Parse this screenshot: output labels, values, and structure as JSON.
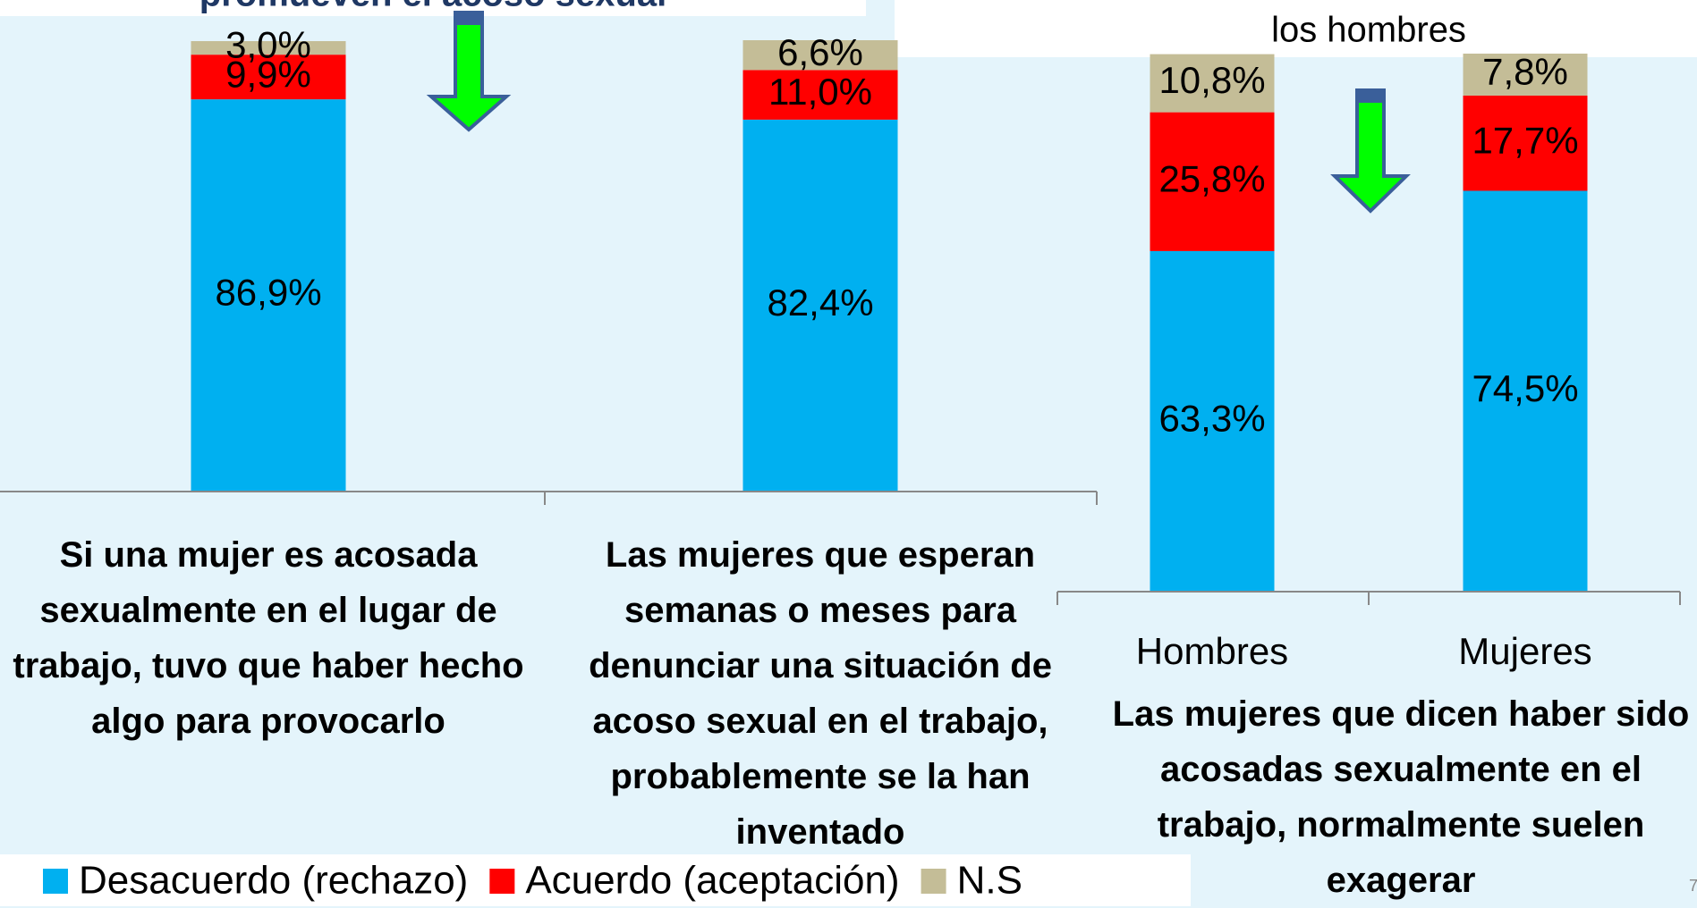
{
  "title": "promueven el acoso sexual",
  "subtitle": "los hombres",
  "page_number": "7",
  "chart_data": [
    {
      "type": "bar",
      "stacked": true,
      "categories": [
        "Si una mujer es acosada sexualmente en el lugar de trabajo, tuvo que haber hecho algo para provocarlo",
        "Las mujeres que esperan semanas o meses para denunciar una situación de acoso sexual en el trabajo, probablemente se la han inventado"
      ],
      "ylim": [
        0,
        100
      ],
      "series": [
        {
          "name": "Desacuerdo (rechazo)",
          "color": "#00b0f0",
          "values": [
            86.9,
            82.4
          ],
          "value_labels": [
            "86,9%",
            "82,4%"
          ]
        },
        {
          "name": "Acuerdo (aceptación)",
          "color": "#ff0000",
          "values": [
            9.9,
            11.0
          ],
          "value_labels": [
            "9,9%",
            "11,0%"
          ]
        },
        {
          "name": "N.S",
          "color": "#c4bd97",
          "values": [
            3.0,
            6.6
          ],
          "value_labels": [
            "3,0%",
            "6,6%"
          ]
        }
      ]
    },
    {
      "type": "bar",
      "stacked": true,
      "categories": [
        "Hombres",
        "Mujeres"
      ],
      "xlabel": "Las mujeres que dicen haber sido acosadas sexualmente en el trabajo, normalmente suelen exagerar",
      "ylim": [
        0,
        100
      ],
      "series": [
        {
          "color": "#00b0f0",
          "values": [
            63.3,
            74.5
          ],
          "value_labels": [
            "63,3%",
            "74,5%"
          ]
        },
        {
          "color": "#ff0000",
          "values": [
            25.8,
            17.7
          ],
          "value_labels": [
            "25,8%",
            "17,7%"
          ]
        },
        {
          "color": "#c4bd97",
          "values": [
            10.8,
            7.8
          ],
          "value_labels": [
            "10,8%",
            "7,8%"
          ]
        }
      ]
    }
  ]
}
